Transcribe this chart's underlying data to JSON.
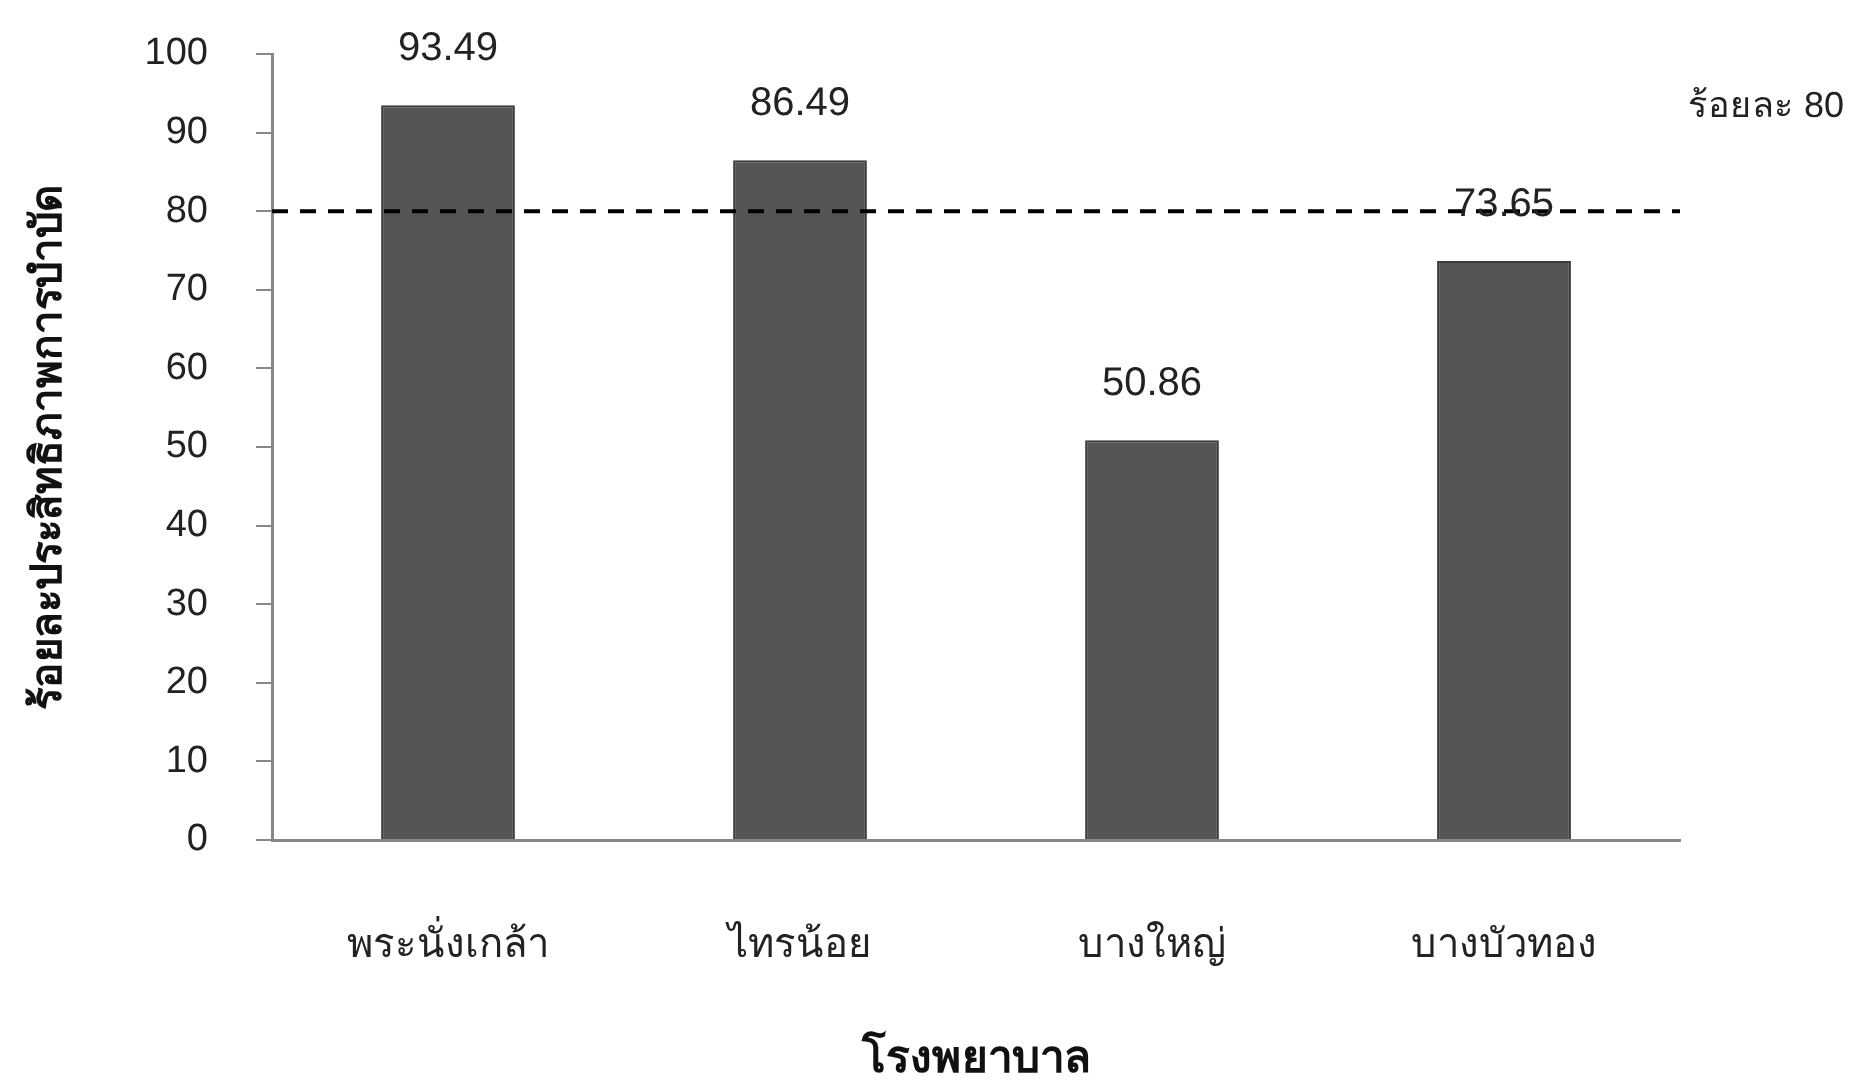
{
  "chart_data": {
    "type": "bar",
    "ylabel": "ร้อยละประสิทธิภาพการบำบัด",
    "xlabel": "โรงพยาบาล",
    "categories": [
      "พระนั่งเกล้า",
      "ไทรน้อย",
      "บางใหญ่",
      "บางบัวทอง"
    ],
    "values": [
      93.49,
      86.49,
      50.86,
      73.65
    ],
    "color": "#555555",
    "ylim": [
      0,
      100
    ],
    "yticks": [
      0,
      10,
      20,
      30,
      40,
      50,
      60,
      70,
      80,
      90,
      100
    ],
    "grid": false,
    "legend": false,
    "data_labels": true,
    "ref_lines": [
      {
        "axis": "y",
        "value": 80,
        "label": "ร้อยละ 80",
        "color": "#000000",
        "line_style": "dashed"
      }
    ]
  }
}
